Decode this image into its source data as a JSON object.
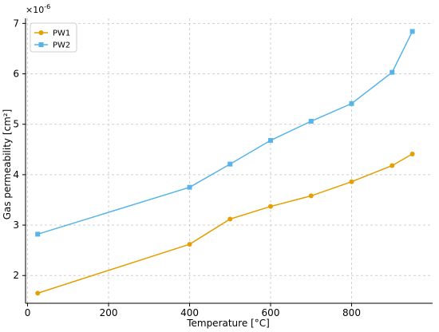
{
  "chart_data": {
    "type": "line",
    "xlabel": "Temperature [°C]",
    "ylabel": "Gas permeability [cm²]",
    "y_multiplier_label": "×10",
    "y_multiplier_exponent": "-6",
    "xlim": [
      -5,
      1000
    ],
    "ylim": [
      1.45,
      7.1
    ],
    "xticks": [
      0,
      200,
      400,
      600,
      800
    ],
    "xtick_labels": [
      "0",
      "200",
      "400",
      "600",
      "800"
    ],
    "yticks": [
      2,
      3,
      4,
      5,
      6,
      7
    ],
    "ytick_labels": [
      "2",
      "3",
      "4",
      "5",
      "6",
      "7"
    ],
    "grid": true,
    "legend_position": "top-left",
    "series": [
      {
        "name": "PW1",
        "color": "#E69F00",
        "marker": "circle",
        "x": [
          25,
          400,
          500,
          600,
          700,
          800,
          900,
          950
        ],
        "y": [
          1.65,
          2.62,
          3.12,
          3.37,
          3.58,
          3.86,
          4.18,
          4.41
        ]
      },
      {
        "name": "PW2",
        "color": "#56B4E9",
        "marker": "square",
        "x": [
          25,
          400,
          500,
          600,
          700,
          800,
          900,
          950
        ],
        "y": [
          2.82,
          3.75,
          4.21,
          4.68,
          5.06,
          5.41,
          6.03,
          6.84
        ]
      }
    ]
  }
}
